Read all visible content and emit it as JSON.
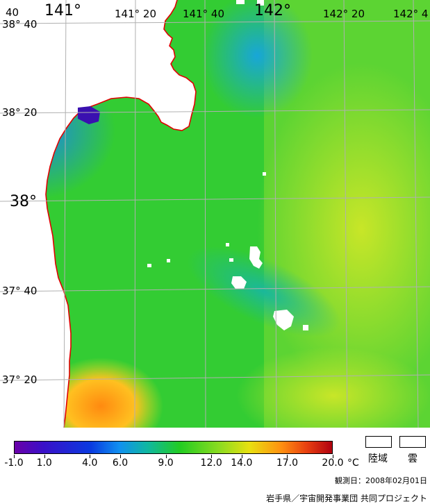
{
  "map": {
    "longitude_labels": [
      "141°",
      "141° 20",
      "141° 40",
      "142°",
      "142° 20",
      "142° 4"
    ],
    "longitude_edge_label": "40",
    "latitude_labels": [
      "38° 40",
      "38° 20",
      "38°",
      "37° 40",
      "37° 20"
    ]
  },
  "legend": {
    "ticks": [
      "-1.0",
      "1.0",
      "4.0",
      "6.0",
      "9.0",
      "12.0",
      "14.0",
      "17.0",
      "20.0"
    ],
    "unit": "°C",
    "land_label": "陸域",
    "cloud_label": "雲",
    "observation_date": "観測日：2008年02月01日",
    "credit": "岩手県／宇宙開発事業団 共同プロジェクト"
  },
  "colors": {
    "land": "#ffffff",
    "coastline": "#e00000",
    "gridline": "#b0b0b0"
  }
}
